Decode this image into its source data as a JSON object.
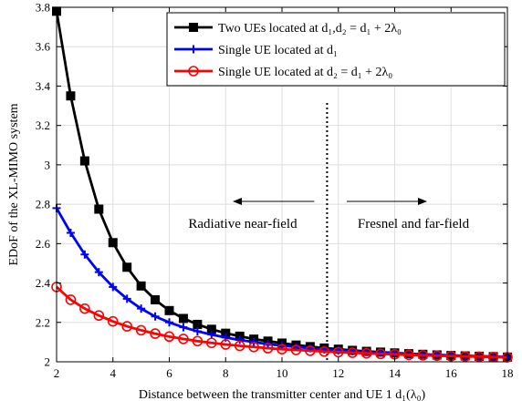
{
  "chart_data": {
    "type": "line",
    "xlabel": "Distance between the transmitter center and UE 1 d₁(λ₀)",
    "ylabel": "EDoF of the XL-MIMO system",
    "xlim": [
      2,
      18
    ],
    "ylim": [
      2,
      3.8
    ],
    "xticks": [
      2,
      4,
      6,
      8,
      10,
      12,
      14,
      16,
      18
    ],
    "yticks": [
      2,
      2.2,
      2.4,
      2.6,
      2.8,
      3,
      3.2,
      3.4,
      3.6,
      3.8
    ],
    "grid": true,
    "legend_position": "top-right",
    "x": [
      2,
      2.5,
      3,
      3.5,
      4,
      4.5,
      5,
      5.5,
      6,
      6.5,
      7,
      7.5,
      8,
      8.5,
      9,
      9.5,
      10,
      10.5,
      11,
      11.5,
      12,
      12.5,
      13,
      13.5,
      14,
      14.5,
      15,
      15.5,
      16,
      16.5,
      17,
      17.5,
      18
    ],
    "series": [
      {
        "name": "Two UEs located at d₁,d₂ = d₁ + 2λ₀",
        "color": "#000000",
        "marker": "square",
        "values": [
          3.78,
          3.35,
          3.02,
          2.775,
          2.605,
          2.48,
          2.385,
          2.315,
          2.26,
          2.22,
          2.19,
          2.165,
          2.145,
          2.13,
          2.115,
          2.105,
          2.095,
          2.085,
          2.077,
          2.07,
          2.064,
          2.058,
          2.053,
          2.049,
          2.045,
          2.041,
          2.038,
          2.035,
          2.032,
          2.03,
          2.028,
          2.026,
          2.024
        ]
      },
      {
        "name": "Single UE located at d₁",
        "color": "#0000ff",
        "marker": "plus",
        "values": [
          2.78,
          2.655,
          2.545,
          2.455,
          2.38,
          2.32,
          2.27,
          2.23,
          2.2,
          2.175,
          2.155,
          2.138,
          2.123,
          2.111,
          2.1,
          2.09,
          2.082,
          2.075,
          2.069,
          2.063,
          2.058,
          2.054,
          2.05,
          2.046,
          2.043,
          2.04,
          2.037,
          2.034,
          2.032,
          2.03,
          2.028,
          2.026,
          2.024
        ]
      },
      {
        "name": "Single UE located at d₂ = d₁ + 2λ₀",
        "color": "#ff0000",
        "marker": "circle",
        "values": [
          2.38,
          2.315,
          2.27,
          2.235,
          2.205,
          2.18,
          2.16,
          2.143,
          2.128,
          2.116,
          2.105,
          2.096,
          2.088,
          2.081,
          2.075,
          2.069,
          2.064,
          2.06,
          2.056,
          2.052,
          2.049,
          2.046,
          2.043,
          2.04,
          2.038,
          2.035,
          2.033,
          2.031,
          2.029,
          2.027,
          2.026,
          2.024,
          2.023
        ]
      }
    ],
    "divider_x": 11.6,
    "annotations": {
      "left_text": "Radiative near-field",
      "right_text": "Fresnel and far-field"
    }
  }
}
